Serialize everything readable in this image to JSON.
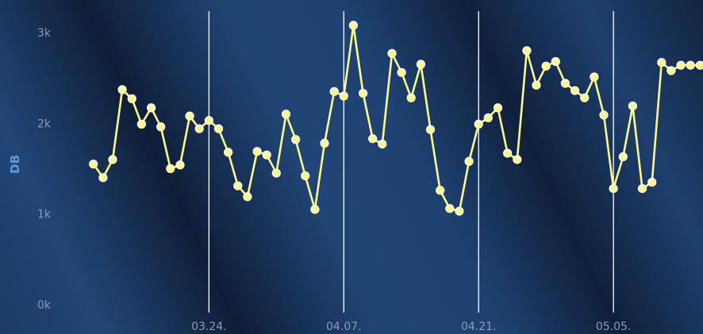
{
  "chart_data": {
    "type": "line",
    "title": "",
    "xlabel": "",
    "ylabel": "DB",
    "y_ticks": [
      {
        "value": 0,
        "label": "0k"
      },
      {
        "value": 1000,
        "label": "1k"
      },
      {
        "value": 2000,
        "label": "2k"
      },
      {
        "value": 3000,
        "label": "3k"
      }
    ],
    "ylim": [
      -60,
      3240
    ],
    "x_ticks": [
      {
        "day": 23,
        "label": "03.24."
      },
      {
        "day": 37,
        "label": "04.07."
      },
      {
        "day": 51,
        "label": "04.21."
      },
      {
        "day": 65,
        "label": "05.05."
      }
    ],
    "xlim": [
      1.3,
      74.3
    ],
    "grid": {
      "vertical": true,
      "horizontal": false
    },
    "colors": {
      "line": "#fafa8c",
      "marker": "#fafa8c",
      "marker_stroke": "#ffffff",
      "gridline": "#ffffff",
      "background_dark": "#0f1e38",
      "background_light": "#224677"
    },
    "series": [
      {
        "x": [
          11,
          12,
          13,
          14,
          15,
          16,
          17,
          18,
          19,
          20,
          21,
          22,
          23,
          24,
          25,
          26,
          27,
          28,
          29,
          30,
          31,
          32,
          33,
          34,
          35,
          36,
          37,
          38,
          39,
          40,
          41,
          42,
          43,
          44,
          45,
          46,
          47,
          48,
          49,
          50,
          51,
          52,
          53,
          54,
          55,
          56,
          57,
          58,
          59,
          60,
          61,
          62,
          63,
          64,
          65,
          66,
          67,
          68,
          69,
          70,
          71,
          72,
          73,
          74
        ],
        "values": [
          1550,
          1400,
          1600,
          2370,
          2270,
          1990,
          2170,
          1960,
          1500,
          1540,
          2080,
          1940,
          2030,
          1940,
          1680,
          1310,
          1190,
          1690,
          1650,
          1450,
          2100,
          1820,
          1420,
          1050,
          1780,
          2350,
          2300,
          3080,
          2330,
          1830,
          1770,
          2770,
          2560,
          2280,
          2650,
          1930,
          1260,
          1060,
          1030,
          1580,
          1990,
          2060,
          2170,
          1670,
          1600,
          2800,
          2420,
          2630,
          2680,
          2440,
          2360,
          2280,
          2510,
          2090,
          1280,
          1630,
          2190,
          1280,
          1350,
          2670,
          2580,
          2640,
          2640,
          2640
        ]
      }
    ]
  }
}
